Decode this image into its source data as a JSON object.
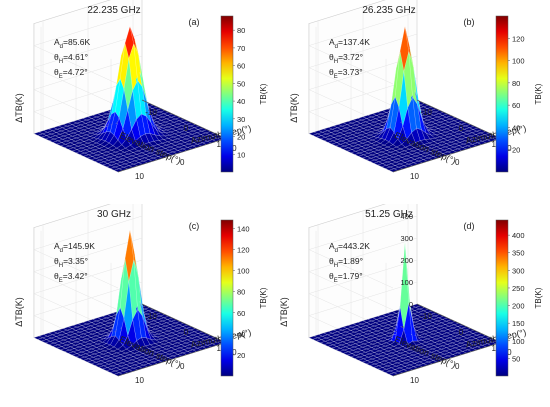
{
  "chart_data": [
    {
      "type": "surface",
      "title": "22.235 GHz",
      "panel_label": "(a)",
      "xlabel": "Azimuth step(°)",
      "ylabel": "Elevation step(°)",
      "zlabel": "ΔTB(K)",
      "colorbar_label": "TB(K)",
      "x_ticks": [
        "-10",
        "0",
        "10"
      ],
      "y_ticks": [
        "-10",
        "0",
        "10"
      ],
      "z_ticks": [],
      "zlim": [
        0,
        86
      ],
      "colorbar_ticks": [
        "10",
        "20",
        "30",
        "40",
        "50",
        "60",
        "70",
        "80"
      ],
      "colorbar_range": [
        0,
        88
      ],
      "annotation": {
        "Ad": {
          "prefix": "A",
          "sub": "d",
          "text": "=85.6K"
        },
        "thetaH": {
          "prefix": "θ",
          "sub": "H",
          "text": "=4.61°"
        },
        "thetaE": {
          "prefix": "θ",
          "sub": "E",
          "text": "=4.72°"
        }
      },
      "peak": 85.6,
      "theta_h": 4.61,
      "theta_e": 4.72
    },
    {
      "type": "surface",
      "title": "26.235 GHz",
      "panel_label": "(b)",
      "xlabel": "Azimuth step(°)",
      "ylabel": "Elevation step(°)",
      "zlabel": "ΔTB(K)",
      "colorbar_label": "TB(K)",
      "x_ticks": [
        "-10",
        "0",
        "10"
      ],
      "y_ticks": [
        "-10",
        "0",
        "10"
      ],
      "z_ticks": [],
      "zlim": [
        0,
        138
      ],
      "colorbar_ticks": [
        "20",
        "40",
        "60",
        "80",
        "100",
        "120"
      ],
      "colorbar_range": [
        0,
        140
      ],
      "annotation": {
        "Ad": {
          "prefix": "A",
          "sub": "d",
          "text": "=137.4K"
        },
        "thetaH": {
          "prefix": "θ",
          "sub": "H",
          "text": "=3.72°"
        },
        "thetaE": {
          "prefix": "θ",
          "sub": "E",
          "text": "=3.73°"
        }
      },
      "peak": 137.4,
      "theta_h": 3.72,
      "theta_e": 3.73
    },
    {
      "type": "surface",
      "title": "30 GHz",
      "panel_label": "(c)",
      "xlabel": "Azimuth step(°)",
      "ylabel": "Elevation step(°)",
      "zlabel": "ΔTB(K)",
      "colorbar_label": "TB(K)",
      "x_ticks": [
        "-10",
        "0",
        "10"
      ],
      "y_ticks": [
        "-10",
        "0",
        "10"
      ],
      "z_ticks": [],
      "zlim": [
        0,
        146
      ],
      "colorbar_ticks": [
        "20",
        "40",
        "60",
        "80",
        "100",
        "120",
        "140"
      ],
      "colorbar_range": [
        0,
        148
      ],
      "annotation": {
        "Ad": {
          "prefix": "A",
          "sub": "d",
          "text": "=145.9K"
        },
        "thetaH": {
          "prefix": "θ",
          "sub": "H",
          "text": "=3.35°"
        },
        "thetaE": {
          "prefix": "θ",
          "sub": "E",
          "text": "=3.42°"
        }
      },
      "peak": 145.9,
      "theta_h": 3.35,
      "theta_e": 3.42
    },
    {
      "type": "surface",
      "title": "51.25 GHz",
      "panel_label": "(d)",
      "xlabel": "Azimuth step(°)",
      "ylabel": "Elevation step(°)",
      "zlabel": "ΔTB(K)",
      "colorbar_label": "TB(K)",
      "x_ticks": [
        "-10",
        "0",
        "10"
      ],
      "y_ticks": [
        "-10",
        "0",
        "10"
      ],
      "z_ticks": [
        "0",
        "100",
        "200",
        "300",
        "400",
        "500"
      ],
      "zlim": [
        0,
        500
      ],
      "colorbar_ticks": [
        "50",
        "100",
        "150",
        "200",
        "250",
        "300",
        "350",
        "400"
      ],
      "colorbar_range": [
        0,
        443
      ],
      "annotation": {
        "Ad": {
          "prefix": "A",
          "sub": "d",
          "text": "=443.2K"
        },
        "thetaH": {
          "prefix": "θ",
          "sub": "H",
          "text": "=1.89°"
        },
        "thetaE": {
          "prefix": "θ",
          "sub": "E",
          "text": "=1.79°"
        }
      },
      "peak": 443.2,
      "theta_h": 1.89,
      "theta_e": 1.79
    }
  ]
}
